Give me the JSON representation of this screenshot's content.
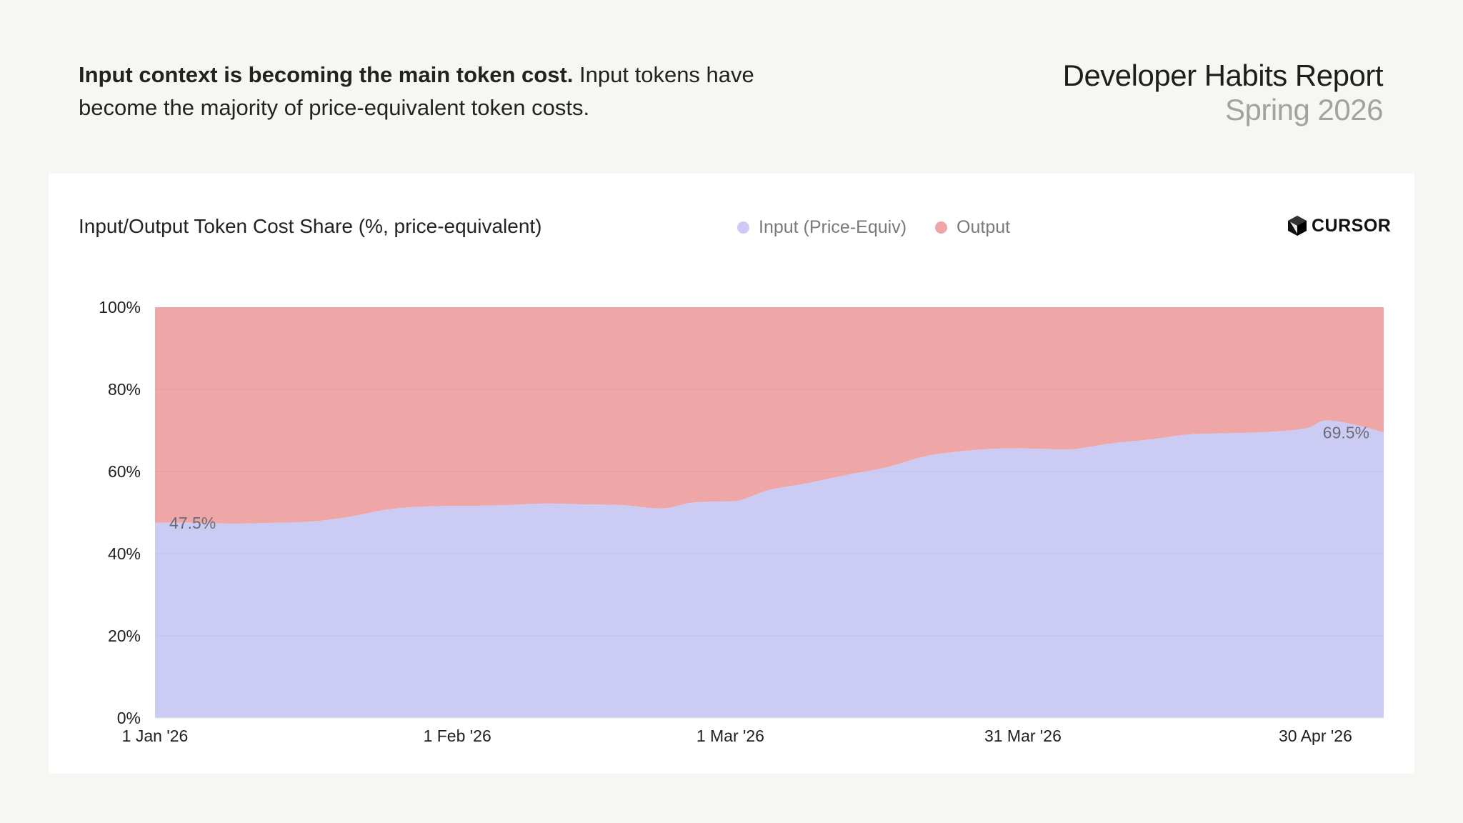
{
  "headline": {
    "bold": "Input context is becoming the main token cost.",
    "rest": " Input tokens have become the majority of price-equivalent token costs."
  },
  "report": {
    "title": "Developer Habits Report",
    "subtitle": "Spring 2026"
  },
  "logo": {
    "text": "CURSOR",
    "icon": "cursor-cube-icon"
  },
  "colors": {
    "input": "#cccbf3",
    "output": "#eea6a7",
    "background": "#f6f6f2",
    "card": "#ffffff"
  },
  "chart_data": {
    "type": "area",
    "stacked": true,
    "normalized": true,
    "title": "Input/Output Token Cost Share (%, price-equivalent)",
    "xlabel": "",
    "ylabel": "",
    "ylim": [
      0,
      100
    ],
    "yticks": [
      "0%",
      "20%",
      "40%",
      "60%",
      "80%",
      "100%"
    ],
    "xticks": [
      {
        "date": "2026-01-01",
        "label": "1 Jan '26"
      },
      {
        "date": "2026-02-01",
        "label": "1 Feb '26"
      },
      {
        "date": "2026-03-01",
        "label": "1 Mar '26"
      },
      {
        "date": "2026-03-31",
        "label": "31 Mar '26"
      },
      {
        "date": "2026-04-30",
        "label": "30 Apr '26"
      }
    ],
    "x_range": [
      "2026-01-01",
      "2026-05-07"
    ],
    "legend": {
      "placement": "top-center"
    },
    "series": [
      {
        "name": "Input (Price-Equiv)",
        "color": "#cccbf3",
        "values": [
          [
            "2026-01-01",
            47.5
          ],
          [
            "2026-01-05",
            47.5
          ],
          [
            "2026-01-09",
            47.3
          ],
          [
            "2026-01-13",
            47.5
          ],
          [
            "2026-01-17",
            47.8
          ],
          [
            "2026-01-21",
            49.0
          ],
          [
            "2026-01-25",
            50.8
          ],
          [
            "2026-01-29",
            51.5
          ],
          [
            "2026-02-02",
            51.6
          ],
          [
            "2026-02-06",
            51.8
          ],
          [
            "2026-02-10",
            52.2
          ],
          [
            "2026-02-14",
            52.0
          ],
          [
            "2026-02-18",
            51.8
          ],
          [
            "2026-02-22",
            51.0
          ],
          [
            "2026-02-25",
            52.4
          ],
          [
            "2026-02-28",
            52.7
          ],
          [
            "2026-03-02",
            53.0
          ],
          [
            "2026-03-05",
            55.5
          ],
          [
            "2026-03-09",
            57.2
          ],
          [
            "2026-03-13",
            59.2
          ],
          [
            "2026-03-17",
            61.0
          ],
          [
            "2026-03-21",
            63.7
          ],
          [
            "2026-03-25",
            65.0
          ],
          [
            "2026-03-29",
            65.6
          ],
          [
            "2026-04-02",
            65.5
          ],
          [
            "2026-04-05",
            65.4
          ],
          [
            "2026-04-09",
            66.8
          ],
          [
            "2026-04-13",
            67.8
          ],
          [
            "2026-04-17",
            69.0
          ],
          [
            "2026-04-21",
            69.3
          ],
          [
            "2026-04-25",
            69.6
          ],
          [
            "2026-04-29",
            70.5
          ],
          [
            "2026-05-01",
            72.4
          ],
          [
            "2026-05-04",
            71.4
          ],
          [
            "2026-05-07",
            69.5
          ]
        ]
      },
      {
        "name": "Output",
        "color": "#eea6a7",
        "fill_to": 100
      }
    ],
    "annotations": [
      {
        "date": "2026-01-01",
        "value": 47.5,
        "label": "47.5%"
      },
      {
        "date": "2026-05-07",
        "value": 69.5,
        "label": "69.5%"
      }
    ]
  }
}
